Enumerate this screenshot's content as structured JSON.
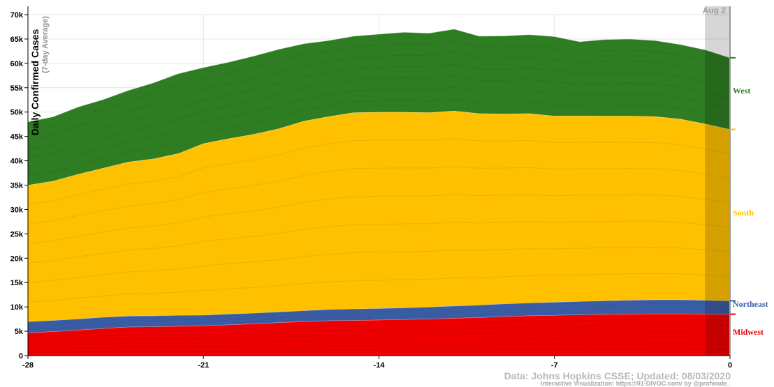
{
  "chart_data": {
    "type": "area",
    "title": "",
    "ylabel": "Daily Confirmed Cases",
    "ylabel_sub": "(7-day Average)",
    "xlabel": "",
    "x": [
      -28,
      -27,
      -26,
      -25,
      -24,
      -23,
      -22,
      -21,
      -20,
      -19,
      -18,
      -17,
      -16,
      -15,
      -14,
      -13,
      -12,
      -11,
      -10,
      -9,
      -8,
      -7,
      -6,
      -5,
      -4,
      -3,
      -2,
      -1,
      0
    ],
    "xlim": [
      -28,
      0
    ],
    "ylim": [
      0,
      70000
    ],
    "x_ticks": [
      -28,
      -21,
      -14,
      -7,
      0
    ],
    "y_ticks": [
      0,
      5000,
      10000,
      15000,
      20000,
      25000,
      30000,
      35000,
      40000,
      45000,
      50000,
      55000,
      60000,
      65000,
      70000
    ],
    "x_tick_labels": [
      "-28",
      "-21",
      "-14",
      "-7",
      "0"
    ],
    "y_tick_labels": [
      "0",
      "5k",
      "10k",
      "15k",
      "20k",
      "25k",
      "30k",
      "35k",
      "40k",
      "45k",
      "50k",
      "55k",
      "60k",
      "65k",
      "70k"
    ],
    "stacked": true,
    "grid": true,
    "series": [
      {
        "name": "Midwest",
        "color": "#ee0000",
        "values": [
          4700,
          4950,
          5250,
          5600,
          5900,
          5950,
          6050,
          6150,
          6350,
          6550,
          6800,
          7000,
          7200,
          7250,
          7350,
          7450,
          7550,
          7700,
          7850,
          8050,
          8200,
          8300,
          8400,
          8500,
          8550,
          8600,
          8600,
          8550,
          8500
        ]
      },
      {
        "name": "Northeast",
        "color": "#3b5fa8",
        "values": [
          2300,
          2300,
          2300,
          2300,
          2250,
          2250,
          2250,
          2200,
          2200,
          2200,
          2200,
          2250,
          2300,
          2350,
          2350,
          2400,
          2450,
          2500,
          2550,
          2600,
          2650,
          2700,
          2750,
          2800,
          2850,
          2900,
          2900,
          2850,
          2750
        ]
      },
      {
        "name": "South",
        "color": "#ffc000",
        "values": [
          28000,
          28600,
          29700,
          30600,
          31600,
          32200,
          33200,
          35200,
          36000,
          36700,
          37600,
          38900,
          39600,
          40300,
          40300,
          40150,
          39900,
          40050,
          39300,
          39000,
          38850,
          38200,
          38100,
          37900,
          37800,
          37600,
          37100,
          36200,
          35200
        ]
      },
      {
        "name": "West",
        "color": "#2e7d22",
        "values": [
          13000,
          13200,
          13800,
          14100,
          14700,
          15600,
          16400,
          15600,
          15700,
          16050,
          16300,
          15900,
          15600,
          15700,
          16000,
          16400,
          16300,
          16800,
          15900,
          16000,
          16200,
          16300,
          15200,
          15700,
          15800,
          15600,
          15300,
          15200,
          14700
        ]
      }
    ],
    "region_labels": [
      "West",
      "South",
      "Northeast",
      "Midwest"
    ],
    "annotation": "Aug 2"
  },
  "credit": "Data: Johns Hopkins CSSE; Updated: 08/03/2020",
  "viz_credit": "Interactive Visualization: https://91-DIVOC.com/ by @profwade_"
}
